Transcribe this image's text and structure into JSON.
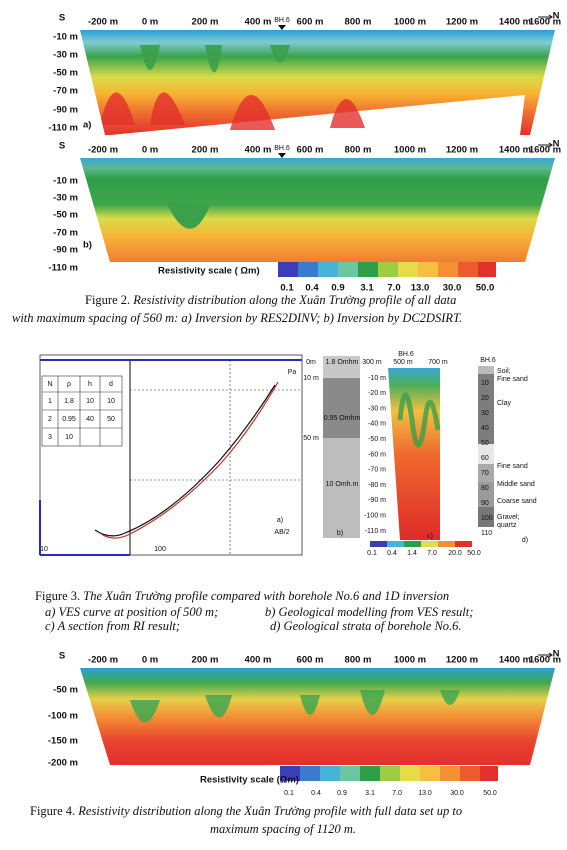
{
  "figure2": {
    "panel_a": {
      "south": "S",
      "north": "N",
      "marker": "BH.6",
      "distances": [
        "-200 m",
        "0 m",
        "200 m",
        "400 m",
        "600 m",
        "800 m",
        "1000 m",
        "1200 m",
        "1400 m",
        "1600 m"
      ],
      "depths": [
        "-10 m",
        "-30 m",
        "-50 m",
        "-70 m",
        "-90 m",
        "-110 m"
      ],
      "label": "a)"
    },
    "panel_b": {
      "south": "S",
      "north": "N",
      "marker": "BH.6",
      "distances": [
        "-200 m",
        "0 m",
        "200 m",
        "400 m",
        "600 m",
        "800 m",
        "1000 m",
        "1200 m",
        "1400 m",
        "1600 m"
      ],
      "depths": [
        "-10 m",
        "-30 m",
        "-50 m",
        "-70 m",
        "-90 m",
        "-110 m"
      ],
      "label": "b)"
    },
    "scale": {
      "title": "Resistivity scale ( Ωm)",
      "values": [
        "0.1",
        "0.4",
        "0.9",
        "3.1",
        "7.0",
        "13.0",
        "30.0",
        "50.0"
      ]
    },
    "caption": {
      "number": "Figure 2.",
      "line1": "Resistivity distribution along the Xuân Trường profile of all data",
      "line2": "with maximum  spacing  of 560 m: a) Inversion by RES2DINV; b) Inversion by DC2DSIRT."
    }
  },
  "figure3": {
    "ves": {
      "axis_label": "Pa",
      "table_header": [
        "N",
        "ρ",
        "h",
        "d"
      ],
      "table_rows": [
        [
          "1",
          "1.8",
          "10",
          "10"
        ],
        [
          "2",
          "0.95",
          "40",
          "50"
        ],
        [
          "3",
          "10"
        ]
      ],
      "x_labels": [
        "10",
        "100"
      ],
      "x_title": "AB/2",
      "label": "a)"
    },
    "model": {
      "depths": [
        "0m",
        "10 m",
        "50 m"
      ],
      "layers": [
        "1.8 Omhm",
        "0.95 Omhm",
        "10 Omh.m"
      ],
      "label": "b)"
    },
    "section": {
      "distances": [
        "300 m",
        "500 m",
        "700 m"
      ],
      "marker": "BH.6",
      "depths": [
        "-10 m",
        "-20 m",
        "-30 m",
        "-40 m",
        "-50 m",
        "-60 m",
        "-70 m",
        "-80 m",
        "-90 m",
        "-100 m",
        "-110 m"
      ],
      "scale": [
        "0.1",
        "0.4",
        "1.4",
        "7.0",
        "20.0",
        "50.0"
      ],
      "label": "c)"
    },
    "borehole": {
      "title": "BH.6",
      "depths": [
        "10",
        "20",
        "30",
        "40",
        "50",
        "60",
        "70",
        "80",
        "90",
        "100",
        "110"
      ],
      "strata": [
        "Soil;",
        "Fine sand",
        "Clay",
        "Fine sand",
        "Middle sand",
        "Coarse sand",
        "Gravel;",
        "quartz"
      ],
      "label": "d)"
    },
    "caption": {
      "number": "Figure 3.",
      "line1": "The Xuân Trường profile compared with borehole No.6 and 1D inversion",
      "items": [
        "a) VES curve at position of 500 m;",
        "b) Geological modelling from VES result;",
        "c) A section from RI result;",
        "d) Geological strata of borehole No.6."
      ]
    }
  },
  "figure4": {
    "section": {
      "south": "S",
      "north": "N",
      "distances": [
        "-200 m",
        "0 m",
        "200 m",
        "400 m",
        "600 m",
        "800 m",
        "1000 m",
        "1200 m",
        "1400 m",
        "1600 m"
      ],
      "depths": [
        "-50 m",
        "-100 m",
        "-150 m",
        "-200 m"
      ]
    },
    "scale": {
      "title": "Resistivity scale (Ωm)",
      "values": [
        "0.1",
        "0.4",
        "0.9",
        "3.1",
        "7.0",
        "13.0",
        "30.0",
        "50.0"
      ]
    },
    "caption": {
      "number": "Figure 4.",
      "line1": "Resistivity distribution along the Xuân Trường profile with full data set up to",
      "line2": "maximum spacing of 1120 m."
    }
  }
}
